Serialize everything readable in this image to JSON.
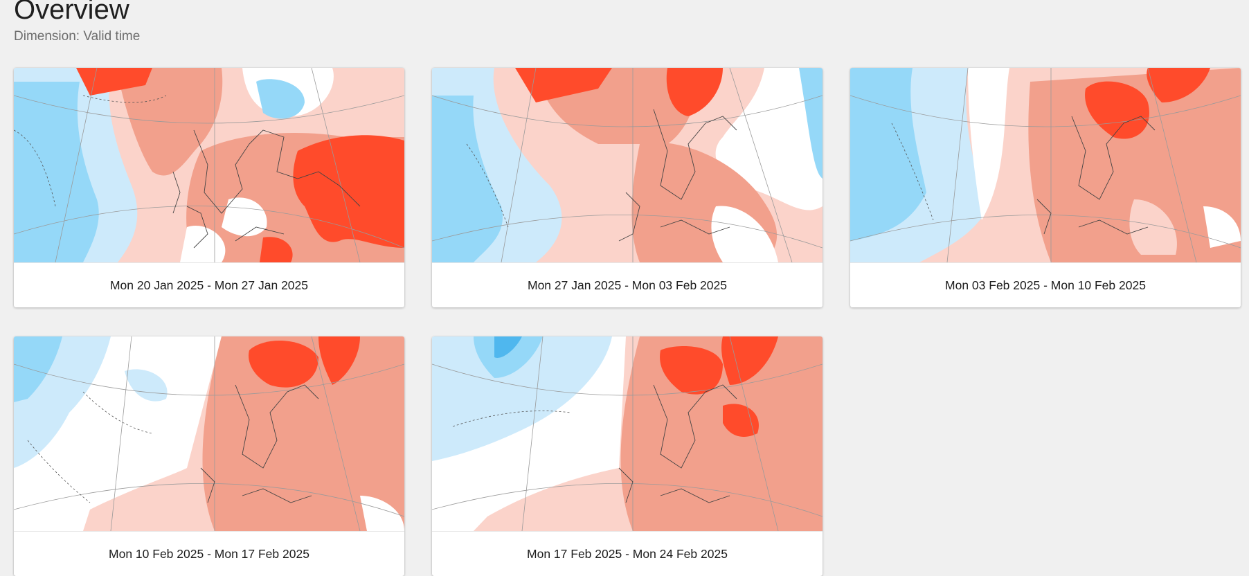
{
  "page": {
    "title": "Overview",
    "subtitle": "Dimension: Valid time"
  },
  "cards": [
    {
      "label": "Mon 20 Jan 2025 - Mon 27 Jan 2025"
    },
    {
      "label": "Mon 27 Jan 2025 - Mon 03 Feb 2025"
    },
    {
      "label": "Mon 03 Feb 2025 - Mon 10 Feb 2025"
    },
    {
      "label": "Mon 10 Feb 2025 - Mon 17 Feb 2025"
    },
    {
      "label": "Mon 17 Feb 2025 - Mon 24 Feb 2025"
    }
  ],
  "colors": {
    "strong_warm": "#ff4b2b",
    "warm": "#f2a08c",
    "light_warm": "#fbd3ca",
    "neutral": "#ffffff",
    "light_cold": "#cdeafb",
    "cold": "#95d8f8",
    "strong_cold": "#4fb7ee"
  }
}
